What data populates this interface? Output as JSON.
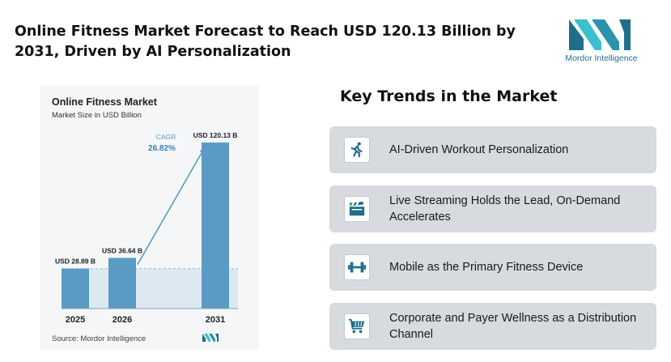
{
  "header": {
    "headline": "Online Fitness Market Forecast to Reach USD 120.13 Billion by 2031, Driven by AI Personalization"
  },
  "logo": {
    "brand_text": "Mordor Intelligence",
    "primary_color": "#1f6f8b",
    "accent_color": "#3bbfcf"
  },
  "chart_data": {
    "type": "bar",
    "title": "Online Fitness Market",
    "subtitle": "Market Size in USD Billion",
    "categories": [
      "2025",
      "2026",
      "2031"
    ],
    "values": [
      28.89,
      36.64,
      120.13
    ],
    "data_labels": [
      "USD 28.89 B",
      "USD 36.64 B",
      "USD 120.13 B"
    ],
    "ylim": [
      0,
      120.13
    ],
    "cagr_label": "CAGR",
    "cagr_value": "26.82%",
    "source": "Source: Mordor Intelligence",
    "grid": false,
    "bar_color": "#5a9bc4",
    "baseline_band_color": "#dde9f2"
  },
  "trends": {
    "title": "Key Trends in the Market",
    "items": [
      {
        "label": "AI-Driven Workout Personalization",
        "icon": "running-person-icon"
      },
      {
        "label": "Live Streaming Holds the Lead, On-Demand Accelerates",
        "icon": "clapperboard-icon"
      },
      {
        "label": "Mobile as the Primary Fitness Device",
        "icon": "dumbbell-icon"
      },
      {
        "label": "Corporate and Payer Wellness as a Distribution Channel",
        "icon": "shopping-cart-icon"
      }
    ],
    "icon_color": "#1f6f8b"
  }
}
